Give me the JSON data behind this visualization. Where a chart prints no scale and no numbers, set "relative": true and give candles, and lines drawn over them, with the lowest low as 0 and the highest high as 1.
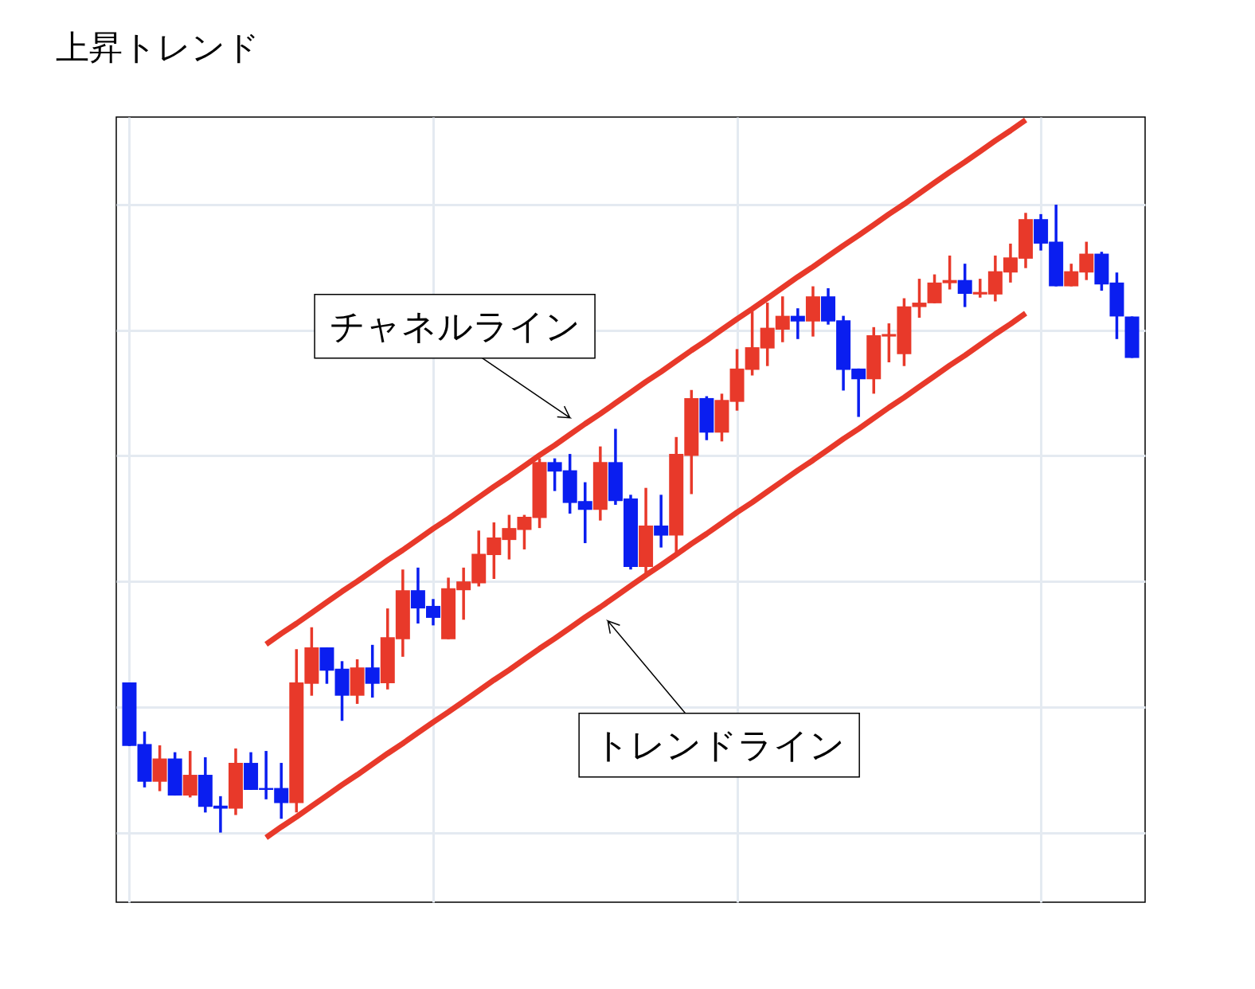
{
  "chart_data": {
    "type": "candlestick",
    "title": "上昇トレンド",
    "relative": true,
    "grid": true,
    "categories": [
      null,
      null,
      null,
      null,
      null,
      null,
      null,
      null,
      null,
      null,
      null,
      null,
      null,
      null,
      null,
      null,
      null,
      null,
      null,
      null,
      null,
      null,
      null,
      null,
      null,
      null,
      null,
      null,
      null,
      null,
      null,
      null,
      null,
      null,
      null,
      null,
      null,
      null,
      null,
      null,
      null,
      null,
      null,
      null,
      null,
      null,
      null,
      null,
      null,
      null,
      null,
      null,
      null,
      null,
      null,
      null,
      null,
      null,
      null,
      null,
      null,
      null,
      null,
      null,
      null,
      null,
      null
    ],
    "ohlc": [
      [
        0.239,
        0.239,
        0.138,
        0.138
      ],
      [
        0.141,
        0.161,
        0.072,
        0.081
      ],
      [
        0.081,
        0.139,
        0.066,
        0.118
      ],
      [
        0.118,
        0.128,
        0.059,
        0.059
      ],
      [
        0.059,
        0.13,
        0.056,
        0.092
      ],
      [
        0.092,
        0.12,
        0.032,
        0.041
      ],
      [
        0.043,
        0.058,
        0,
        0.038
      ],
      [
        0.038,
        0.134,
        0.028,
        0.111
      ],
      [
        0.111,
        0.128,
        0.068,
        0.068
      ],
      [
        0.071,
        0.13,
        0.053,
        0.068
      ],
      [
        0.071,
        0.111,
        0.022,
        0.047
      ],
      [
        0.047,
        0.292,
        0.032,
        0.239
      ],
      [
        0.237,
        0.327,
        0.218,
        0.295
      ],
      [
        0.295,
        0.295,
        0.237,
        0.258
      ],
      [
        0.261,
        0.273,
        0.178,
        0.218
      ],
      [
        0.218,
        0.276,
        0.205,
        0.263
      ],
      [
        0.263,
        0.299,
        0.215,
        0.237
      ],
      [
        0.238,
        0.357,
        0.228,
        0.311
      ],
      [
        0.308,
        0.419,
        0.28,
        0.386
      ],
      [
        0.386,
        0.422,
        0.333,
        0.357
      ],
      [
        0.361,
        0.372,
        0.33,
        0.342
      ],
      [
        0.308,
        0.406,
        0.308,
        0.389
      ],
      [
        0.386,
        0.422,
        0.339,
        0.4
      ],
      [
        0.397,
        0.481,
        0.392,
        0.444
      ],
      [
        0.442,
        0.494,
        0.404,
        0.47
      ],
      [
        0.466,
        0.506,
        0.435,
        0.485
      ],
      [
        0.482,
        0.506,
        0.451,
        0.503
      ],
      [
        0.501,
        0.596,
        0.485,
        0.59
      ],
      [
        0.59,
        0.596,
        0.544,
        0.575
      ],
      [
        0.577,
        0.603,
        0.508,
        0.525
      ],
      [
        0.528,
        0.558,
        0.461,
        0.514
      ],
      [
        0.514,
        0.615,
        0.497,
        0.59
      ],
      [
        0.59,
        0.643,
        0.522,
        0.528
      ],
      [
        0.532,
        0.538,
        0.419,
        0.423
      ],
      [
        0.423,
        0.549,
        0.414,
        0.489
      ],
      [
        0.489,
        0.538,
        0.454,
        0.473
      ],
      [
        0.473,
        0.63,
        0.446,
        0.603
      ],
      [
        0.6,
        0.705,
        0.539,
        0.692
      ],
      [
        0.692,
        0.695,
        0.625,
        0.637
      ],
      [
        0.637,
        0.699,
        0.623,
        0.689
      ],
      [
        0.686,
        0.77,
        0.672,
        0.739
      ],
      [
        0.737,
        0.83,
        0.728,
        0.773
      ],
      [
        0.771,
        0.844,
        0.743,
        0.804
      ],
      [
        0.801,
        0.854,
        0.781,
        0.823
      ],
      [
        0.823,
        0.835,
        0.786,
        0.814
      ],
      [
        0.814,
        0.87,
        0.79,
        0.854
      ],
      [
        0.854,
        0.867,
        0.809,
        0.814
      ],
      [
        0.816,
        0.823,
        0.704,
        0.737
      ],
      [
        0.739,
        0.739,
        0.662,
        0.722
      ],
      [
        0.722,
        0.805,
        0.699,
        0.792
      ],
      [
        0.79,
        0.811,
        0.749,
        0.794
      ],
      [
        0.762,
        0.851,
        0.743,
        0.838
      ],
      [
        0.837,
        0.882,
        0.82,
        0.844
      ],
      [
        0.843,
        0.889,
        0.843,
        0.876
      ],
      [
        0.875,
        0.919,
        0.865,
        0.88
      ],
      [
        0.88,
        0.906,
        0.837,
        0.858
      ],
      [
        0.857,
        0.882,
        0.852,
        0.861
      ],
      [
        0.857,
        0.919,
        0.846,
        0.894
      ],
      [
        0.892,
        0.938,
        0.876,
        0.916
      ],
      [
        0.914,
        0.987,
        0.899,
        0.977
      ],
      [
        0.977,
        0.985,
        0.927,
        0.938
      ],
      [
        0.941,
        1,
        0.87,
        0.87
      ],
      [
        0.87,
        0.906,
        0.87,
        0.894
      ],
      [
        0.892,
        0.941,
        0.88,
        0.922
      ],
      [
        0.922,
        0.925,
        0.863,
        0.873
      ],
      [
        0.876,
        0.892,
        0.786,
        0.822
      ],
      [
        0.822,
        0.822,
        0.756,
        0.756
      ]
    ],
    "colors": [
      "#0a1ef0",
      "#0a1ef0",
      "#e8392a",
      "#0a1ef0",
      "#e8392a",
      "#0a1ef0",
      "#0a1ef0",
      "#e8392a",
      "#0a1ef0",
      "#0a1ef0",
      "#0a1ef0",
      "#e8392a",
      "#e8392a",
      "#0a1ef0",
      "#0a1ef0",
      "#e8392a",
      "#0a1ef0",
      "#e8392a",
      "#e8392a",
      "#0a1ef0",
      "#0a1ef0",
      "#e8392a",
      "#e8392a",
      "#e8392a",
      "#e8392a",
      "#e8392a",
      "#e8392a",
      "#e8392a",
      "#0a1ef0",
      "#0a1ef0",
      "#0a1ef0",
      "#e8392a",
      "#0a1ef0",
      "#0a1ef0",
      "#e8392a",
      "#0a1ef0",
      "#e8392a",
      "#e8392a",
      "#0a1ef0",
      "#e8392a",
      "#e8392a",
      "#e8392a",
      "#e8392a",
      "#e8392a",
      "#0a1ef0",
      "#e8392a",
      "#0a1ef0",
      "#0a1ef0",
      "#0a1ef0",
      "#e8392a",
      "#e8392a",
      "#e8392a",
      "#e8392a",
      "#e8392a",
      "#e8392a",
      "#0a1ef0",
      "#e8392a",
      "#e8392a",
      "#e8392a",
      "#e8392a",
      "#0a1ef0",
      "#0a1ef0",
      "#e8392a",
      "#e8392a",
      "#0a1ef0",
      "#0a1ef0",
      "#0a1ef0"
    ],
    "series": [
      {
        "type": "line",
        "name": "チャネルライン",
        "color": "#e8392a",
        "values": [
          null,
          null,
          null,
          null,
          null,
          null,
          null,
          null,
          null,
          0.3,
          0.317,
          0.333,
          0.35,
          0.367,
          0.384,
          0.4,
          0.417,
          0.434,
          0.45,
          0.467,
          0.484,
          0.5,
          0.517,
          0.534,
          0.551,
          0.567,
          0.584,
          0.601,
          0.617,
          0.634,
          0.651,
          0.667,
          0.684,
          0.701,
          0.718,
          0.734,
          0.751,
          0.768,
          0.784,
          0.801,
          0.818,
          0.834,
          0.851,
          0.868,
          0.885,
          0.901,
          0.918,
          0.935,
          0.951,
          0.968,
          0.985,
          1.001,
          1.018,
          1.035,
          1.052,
          1.068,
          1.085,
          1.102,
          1.118,
          1.135,
          null,
          null,
          null,
          null,
          null,
          null,
          null
        ]
      },
      {
        "type": "line",
        "name": "トレンドライン",
        "color": "#e8392a",
        "values": [
          null,
          null,
          null,
          null,
          null,
          null,
          null,
          null,
          null,
          -0.008,
          0.009,
          0.025,
          0.042,
          0.059,
          0.076,
          0.092,
          0.109,
          0.126,
          0.142,
          0.159,
          0.176,
          0.192,
          0.209,
          0.226,
          0.243,
          0.259,
          0.276,
          0.293,
          0.309,
          0.326,
          0.343,
          0.359,
          0.376,
          0.393,
          0.41,
          0.426,
          0.443,
          0.46,
          0.476,
          0.493,
          0.51,
          0.526,
          0.543,
          0.56,
          0.577,
          0.593,
          0.61,
          0.627,
          0.643,
          0.66,
          0.677,
          0.693,
          0.71,
          0.727,
          0.744,
          0.76,
          0.777,
          0.794,
          0.81,
          0.827,
          null,
          null,
          null,
          null,
          null,
          null,
          null
        ]
      }
    ]
  }
}
